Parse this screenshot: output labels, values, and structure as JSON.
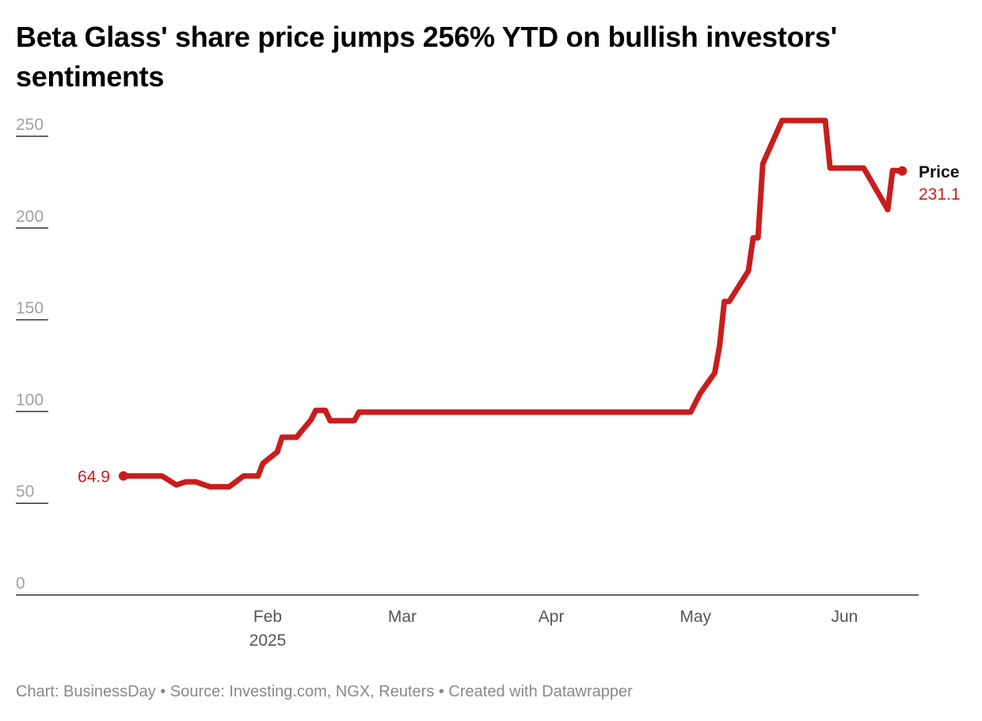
{
  "title": "Beta Glass' share price jumps 256% YTD on bullish investors' sentiments",
  "footer": "Chart: BusinessDay • Source: Investing.com, NGX, Reuters • Created with Datawrapper",
  "chart_data": {
    "type": "line",
    "title": "Beta Glass' share price jumps 256% YTD on bullish investors' sentiments",
    "xlabel": "",
    "ylabel": "",
    "ylim": [
      0,
      250
    ],
    "yticks": [
      0,
      50,
      100,
      150,
      200,
      250
    ],
    "xticks": [
      {
        "date": "2025-02-01",
        "label": "Feb",
        "sublabel": "2025"
      },
      {
        "date": "2025-03-01",
        "label": "Mar"
      },
      {
        "date": "2025-04-01",
        "label": "Apr"
      },
      {
        "date": "2025-05-01",
        "label": "May"
      },
      {
        "date": "2025-06-01",
        "label": "Jun"
      }
    ],
    "grid": false,
    "colors": {
      "line": "#c91d1d",
      "tick_label": "#a0a0a0",
      "axis": "#333333"
    },
    "start_label": "64.9",
    "end_label": "231.1",
    "series": [
      {
        "name": "Price",
        "x": [
          "2025-01-02",
          "2025-01-10",
          "2025-01-13",
          "2025-01-15",
          "2025-01-17",
          "2025-01-20",
          "2025-01-24",
          "2025-01-27",
          "2025-01-30",
          "2025-01-31",
          "2025-02-03",
          "2025-02-04",
          "2025-02-07",
          "2025-02-10",
          "2025-02-11",
          "2025-02-13",
          "2025-02-14",
          "2025-02-19",
          "2025-02-20",
          "2025-04-30",
          "2025-05-02",
          "2025-05-05",
          "2025-05-06",
          "2025-05-07",
          "2025-05-08",
          "2025-05-12",
          "2025-05-13",
          "2025-05-14",
          "2025-05-15",
          "2025-05-19",
          "2025-05-28",
          "2025-05-29",
          "2025-06-05",
          "2025-06-10",
          "2025-06-11",
          "2025-06-13"
        ],
        "values": [
          64.9,
          64.9,
          60,
          61.7,
          61.7,
          59,
          59,
          64.9,
          64.9,
          71.7,
          78,
          86,
          86,
          95.4,
          100.6,
          100.6,
          95,
          95,
          99.7,
          99.7,
          110,
          121,
          135.6,
          160,
          160,
          176.6,
          194.7,
          194.7,
          235,
          258.6,
          258.6,
          232.7,
          232.7,
          210,
          231.4,
          231.1
        ]
      }
    ]
  }
}
